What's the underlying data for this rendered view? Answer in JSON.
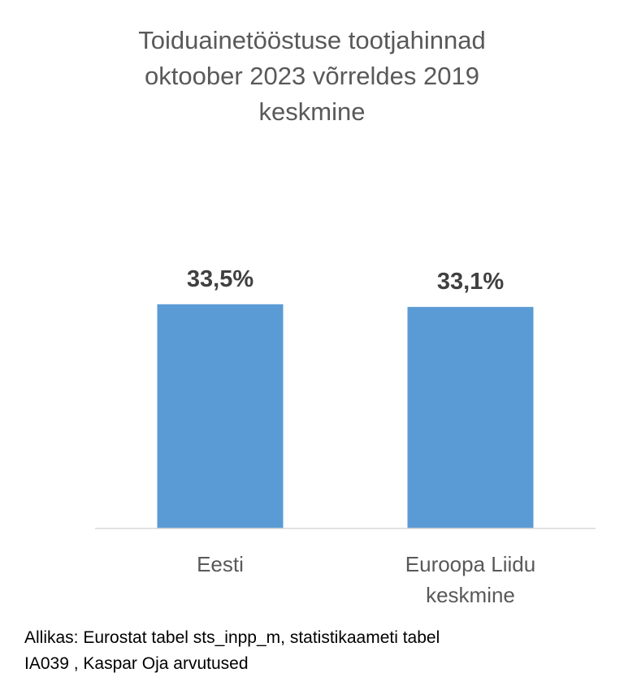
{
  "chart_data": {
    "type": "bar",
    "title_lines": [
      "Toiduainetööstuse tootjahinnad",
      "oktoober 2023 võrreldes 2019",
      "keskmine"
    ],
    "categories": [
      [
        "Eesti"
      ],
      [
        "Euroopa Liidu",
        "keskmine"
      ]
    ],
    "values": [
      33.5,
      33.1
    ],
    "data_labels": [
      "33,5%",
      "33,1%"
    ],
    "unit": "%",
    "ylim": [
      0,
      37.6
    ],
    "grid": false,
    "legend": "none",
    "bar_color": "#5B9BD5",
    "axis_color": "#D9D9D9"
  },
  "source_lines": [
    "Allikas: Eurostat tabel sts_inpp_m, statistikaameti tabel",
    "IA039 , Kaspar Oja arvutused"
  ]
}
